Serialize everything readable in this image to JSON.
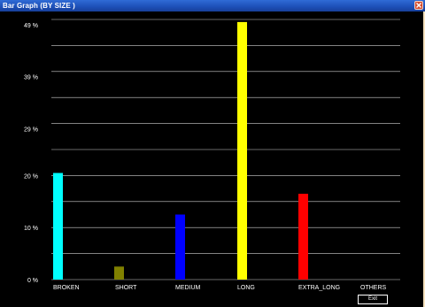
{
  "window": {
    "title": "Bar Graph (BY SIZE )"
  },
  "buttons": {
    "exit_label": "Exit"
  },
  "icons": {
    "close": "close-icon"
  },
  "colors": {
    "background": "#000000",
    "gridline": "#cfcfcf",
    "text": "#ffffff"
  },
  "chart_data": {
    "type": "bar",
    "title": "",
    "xlabel": "",
    "ylabel": "",
    "ylim": [
      0,
      50
    ],
    "yticks": [
      {
        "value": 0,
        "label": "0 %"
      },
      {
        "value": 10,
        "label": "10 %"
      },
      {
        "value": 20,
        "label": "20 %"
      },
      {
        "value": 29,
        "label": "29 %"
      },
      {
        "value": 39,
        "label": "39 %"
      },
      {
        "value": 49,
        "label": "49 %"
      }
    ],
    "grid": true,
    "categories": [
      "BROKEN",
      "SHORT",
      "MEDIUM",
      "LONG",
      "EXTRA_LONG",
      "OTHERS"
    ],
    "values": [
      20.5,
      2.5,
      12.5,
      49.5,
      16.5,
      0
    ],
    "colors": [
      "#00ffff",
      "#808000",
      "#0000ff",
      "#ffff00",
      "#ff0000",
      "#000000"
    ]
  }
}
